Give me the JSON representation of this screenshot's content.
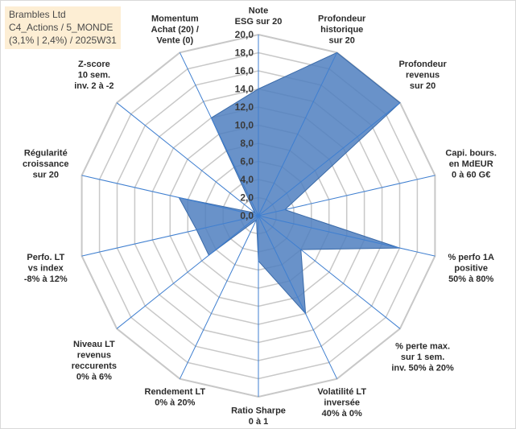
{
  "info_box": {
    "line1": "Brambles Ltd",
    "line2": "C4_Actions / 5_MONDE",
    "line3": "(3,1% | 2,4%) / 2025W31"
  },
  "colors": {
    "area_fill": "#4f7fbf",
    "area_stroke": "#3a6aa8",
    "grid": "#c8c8c8",
    "spoke": "#3f7fd0"
  },
  "chart_data": {
    "type": "radar",
    "r_range": [
      0,
      20
    ],
    "r_ticks": [
      "0,0",
      "2,0",
      "4,0",
      "6,0",
      "8,0",
      "10,0",
      "12,0",
      "14,0",
      "16,0",
      "18,0",
      "20,0"
    ],
    "categories": [
      "Note ESG sur 20",
      "Profondeur historique sur 20",
      "Profondeur revenus sur 20",
      "Capi. bours. en MdEUR 0 à 60 G€",
      "% perfo 1A positive 50% à 80%",
      "% perte max. sur 1 sem. inv. 50% à 20%",
      "Volatilité LT inversée 40% à 0%",
      "Ratio Sharpe 0 à 1",
      "Rendement LT 0% à 20%",
      "Niveau LT revenus reccurents 0% à 6%",
      "Perfo. LT vs index -8% à 12%",
      "Régularité croissance sur 20",
      "Z-score 10 sem. inv. 2 à -2",
      "Momentum Achat (20) / Vente (0)"
    ],
    "axis_label_lines": [
      [
        "Note",
        "ESG sur 20"
      ],
      [
        "Profondeur",
        "historique",
        "sur 20"
      ],
      [
        "Profondeur",
        "revenus",
        "sur 20"
      ],
      [
        "Capi. bours.",
        "en MdEUR",
        "0 à 60 G€"
      ],
      [
        "% perfo 1A",
        "positive",
        "50% à 80%"
      ],
      [
        "% perte max.",
        "sur 1 sem.",
        "inv. 50% à 20%"
      ],
      [
        "Volatilité LT",
        "inversée",
        "40% à 0%"
      ],
      [
        "Ratio Sharpe",
        "0 à 1"
      ],
      [
        "Rendement LT",
        "0% à 20%"
      ],
      [
        "Niveau LT",
        "revenus",
        "reccurents",
        "0% à 6%"
      ],
      [
        "Perfo. LT",
        "vs index",
        "-8% à 12%"
      ],
      [
        "Régularité",
        "croissance",
        "sur 20"
      ],
      [
        "Z-score",
        "10 sem.",
        "inv. 2 à -2"
      ],
      [
        "Momentum",
        "Achat (20) /",
        "Vente (0)"
      ]
    ],
    "values": [
      14.0,
      20.0,
      20.0,
      3.0,
      16.0,
      6.0,
      12.0,
      5.0,
      0.5,
      7.0,
      7.0,
      9.0,
      0.5,
      12.0
    ],
    "grid": true,
    "legend": "none"
  }
}
